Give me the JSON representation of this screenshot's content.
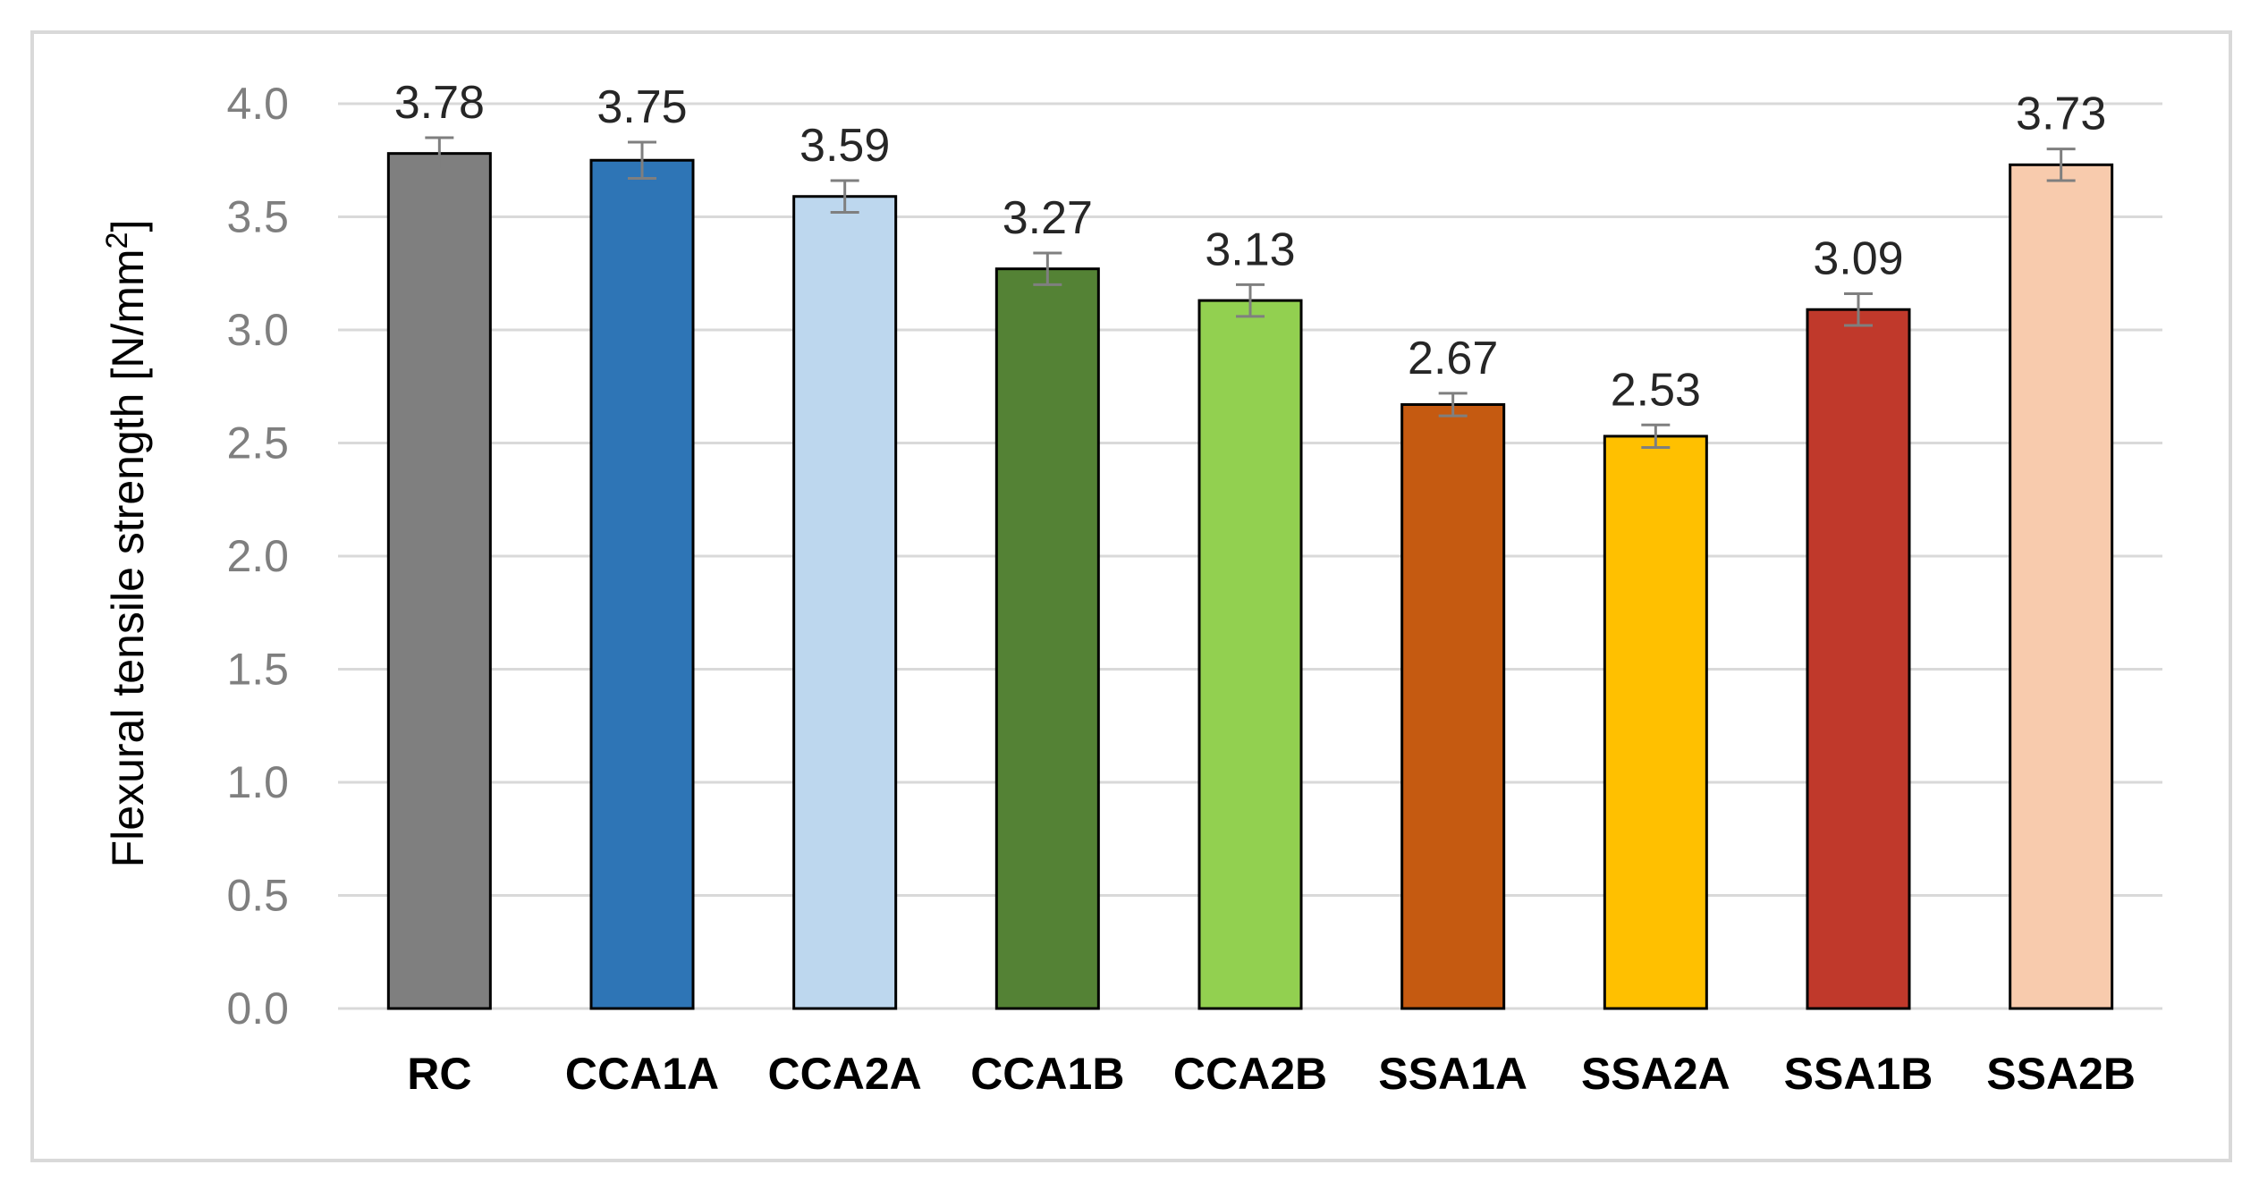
{
  "chart_data": {
    "type": "bar",
    "title": "",
    "xlabel": "",
    "ylabel": "Flexural tensile strength  [N/mm",
    "ylabel_superscript": "2",
    "ylabel_suffix": "]",
    "ylim": [
      0,
      4.0
    ],
    "yticks": [
      "0.0",
      "0.5",
      "1.0",
      "1.5",
      "2.0",
      "2.5",
      "3.0",
      "3.5",
      "4.0"
    ],
    "ytick_values": [
      0,
      0.5,
      1.0,
      1.5,
      2.0,
      2.5,
      3.0,
      3.5,
      4.0
    ],
    "grid": true,
    "legend": "none",
    "categories": [
      "RC",
      "CCA1A",
      "CCA2A",
      "CCA1B",
      "CCA2B",
      "SSA1A",
      "SSA2A",
      "SSA1B",
      "SSA2B"
    ],
    "values": [
      3.78,
      3.75,
      3.59,
      3.27,
      3.13,
      2.67,
      2.53,
      3.09,
      3.73
    ],
    "value_labels": [
      "3.78",
      "3.75",
      "3.59",
      "3.27",
      "3.13",
      "2.67",
      "2.53",
      "3.09",
      "3.73"
    ],
    "error": [
      0.07,
      0.08,
      0.07,
      0.07,
      0.07,
      0.05,
      0.05,
      0.07,
      0.07
    ],
    "colors": [
      "#7f7f7f",
      "#2e75b6",
      "#bdd7ee",
      "#548235",
      "#92d050",
      "#c55a11",
      "#ffc000",
      "#c0392b",
      "#f8cbad"
    ]
  }
}
